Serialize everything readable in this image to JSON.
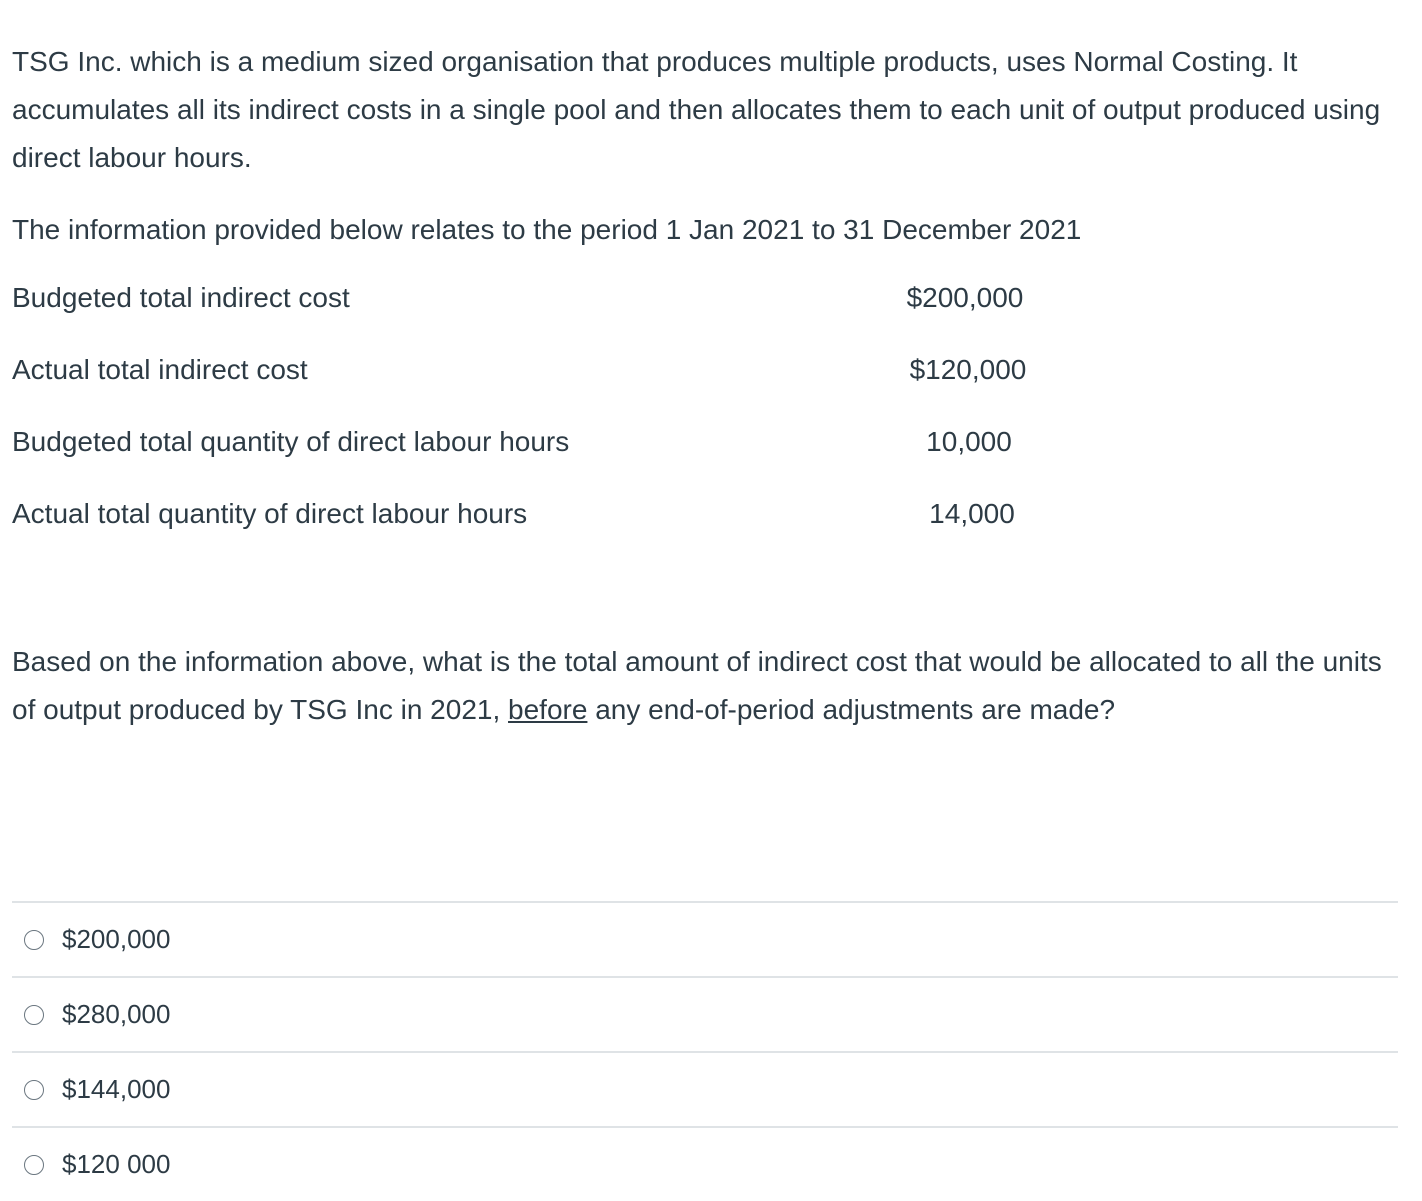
{
  "question": {
    "intro": "TSG Inc. which is a medium sized organisation that produces multiple products, uses Normal Costing. It accumulates all its indirect costs in a single pool and then allocates them to each unit of output produced using direct labour hours.",
    "period": "The information provided below relates to the period 1 Jan 2021 to 31 December 2021",
    "data": [
      {
        "label": "Budgeted total indirect cost",
        "value": "$200,000"
      },
      {
        "label": "Actual total indirect cost",
        "value": "$120,000"
      },
      {
        "label": "Budgeted total quantity of direct labour hours",
        "value": "10,000"
      },
      {
        "label": "Actual total quantity of direct labour hours",
        "value": "14,000"
      }
    ],
    "prompt_before": "Based on the information above, what is the total amount of indirect cost that would be allocated to all the units of output produced by TSG Inc in 2021, ",
    "prompt_emphasis": "before",
    "prompt_after": " any end-of-period adjustments are made?"
  },
  "answers": [
    {
      "label": "$200,000"
    },
    {
      "label": "$280,000"
    },
    {
      "label": "$144,000"
    },
    {
      "label": "$120 000"
    }
  ]
}
